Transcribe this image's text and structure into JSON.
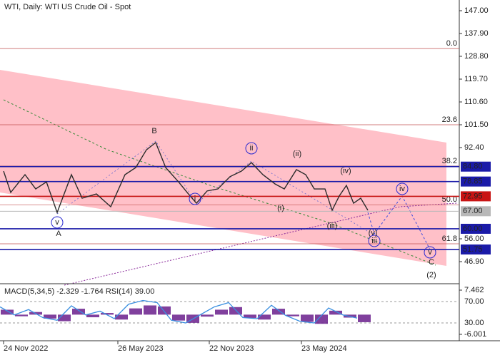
{
  "chart_data": [
    {
      "type": "line",
      "title": "WTI, Daily:  WTI US Crude Oil - Spot",
      "x": [
        5,
        15,
        35,
        50,
        65,
        80,
        100,
        115,
        135,
        155,
        175,
        190,
        205,
        218,
        232,
        250,
        262,
        275,
        290,
        305,
        322,
        338,
        352,
        368,
        385,
        398,
        415,
        428,
        440,
        455,
        465,
        475,
        485,
        495,
        505,
        515
      ],
      "values": [
        83.0,
        74.5,
        81.6,
        75.9,
        78.7,
        66.5,
        81.6,
        72.2,
        73.9,
        68.8,
        81.6,
        84.4,
        91.5,
        94.4,
        84.4,
        78.7,
        74.5,
        70.2,
        75.1,
        75.9,
        80.8,
        83.0,
        86.4,
        81.6,
        77.9,
        75.9,
        83.6,
        81.6,
        75.9,
        75.9,
        67.4,
        73.1,
        77.3,
        70.2,
        72.2,
        67.4
      ],
      "color": "#2b2b2b",
      "xlim": [
        0,
        643
      ],
      "xticks": [
        {
          "value": 5,
          "label": "24 Nov 2022"
        },
        {
          "value": 165,
          "label": "26 May 2023"
        },
        {
          "value": 293,
          "label": "22 Nov 2023"
        },
        {
          "value": 422,
          "label": "23 May 2024"
        }
      ],
      "ylim": [
        46.9,
        147
      ],
      "yticks": [
        {
          "value": 147,
          "label": "147.00"
        },
        {
          "value": 137.9,
          "label": "137.90"
        },
        {
          "value": 128.8,
          "label": "128.80"
        },
        {
          "value": 119.7,
          "label": "119.70"
        },
        {
          "value": 110.6,
          "label": "110.60"
        },
        {
          "value": 101.5,
          "label": "101.50"
        },
        {
          "value": 92.4,
          "label": "92.40"
        },
        {
          "value": 56,
          "label": "56.00"
        },
        {
          "value": 46.9,
          "label": "46.90"
        }
      ],
      "levels": [
        {
          "value": 84.8,
          "label": "84.80",
          "color": "#1a1aa8"
        },
        {
          "value": 78.85,
          "label": "78.85",
          "color": "#1a1aa8"
        },
        {
          "value": 72.95,
          "label": "72.95",
          "color": "#c81414"
        },
        {
          "value": 67,
          "label": "67.00",
          "color": "#b8b8b8"
        },
        {
          "value": 60,
          "label": "60.00",
          "color": "#1a1aa8"
        },
        {
          "value": 51.75,
          "label": "51.75",
          "color": "#1a1aa8"
        }
      ],
      "fib_levels": [
        {
          "value": 131.9,
          "label": "0.0"
        },
        {
          "value": 101.5,
          "label": "23.6"
        },
        {
          "value": 85,
          "label": "38.2"
        },
        {
          "value": 69.6,
          "label": "50.0"
        },
        {
          "value": 54,
          "label": "61.8"
        }
      ],
      "annotations": [
        "B",
        "A",
        "C",
        "(2)",
        "i",
        "ii",
        "iii",
        "iv",
        "v",
        "v",
        "(i)",
        "(ii)",
        "(iii)",
        "(iv)",
        "(v)"
      ]
    },
    {
      "type": "bar",
      "title": "MACD(5,34,5) -2.329 -1.764 RSI(14) 39.00",
      "x": [
        0,
        20,
        40,
        60,
        80,
        100,
        120,
        140,
        160,
        180,
        200,
        220,
        240,
        260,
        280,
        300,
        320,
        340,
        360,
        380,
        400,
        420,
        440,
        460,
        480,
        500
      ],
      "series": [
        {
          "color": "#6a1f8c",
          "values": [
            1.5,
            -0.5,
            0.8,
            -1.2,
            -2.0,
            1.8,
            -0.8,
            0.5,
            -1.5,
            1.9,
            2.8,
            2.5,
            -1.8,
            -2.5,
            -0.6,
            1.5,
            2.3,
            -1.0,
            -1.5,
            1.8,
            -0.5,
            -2.2,
            -2.8,
            1.2,
            -0.9,
            -2.3
          ]
        },
        {
          "color": "#3a8fe0",
          "axis": "y2",
          "values": [
            60,
            45,
            55,
            40,
            35,
            62,
            45,
            52,
            38,
            65,
            72,
            68,
            35,
            30,
            45,
            60,
            68,
            40,
            38,
            63,
            44,
            33,
            30,
            58,
            45,
            39
          ]
        }
      ],
      "ylim": [
        -6.001,
        7.462
      ],
      "yticks": [
        7.462,
        -6.001
      ],
      "y2lim": [
        8.7,
        91.3
      ],
      "y2ticks": [
        {
          "value": 70,
          "label": "70.00"
        },
        {
          "value": 30,
          "label": "30.00"
        }
      ]
    }
  ]
}
